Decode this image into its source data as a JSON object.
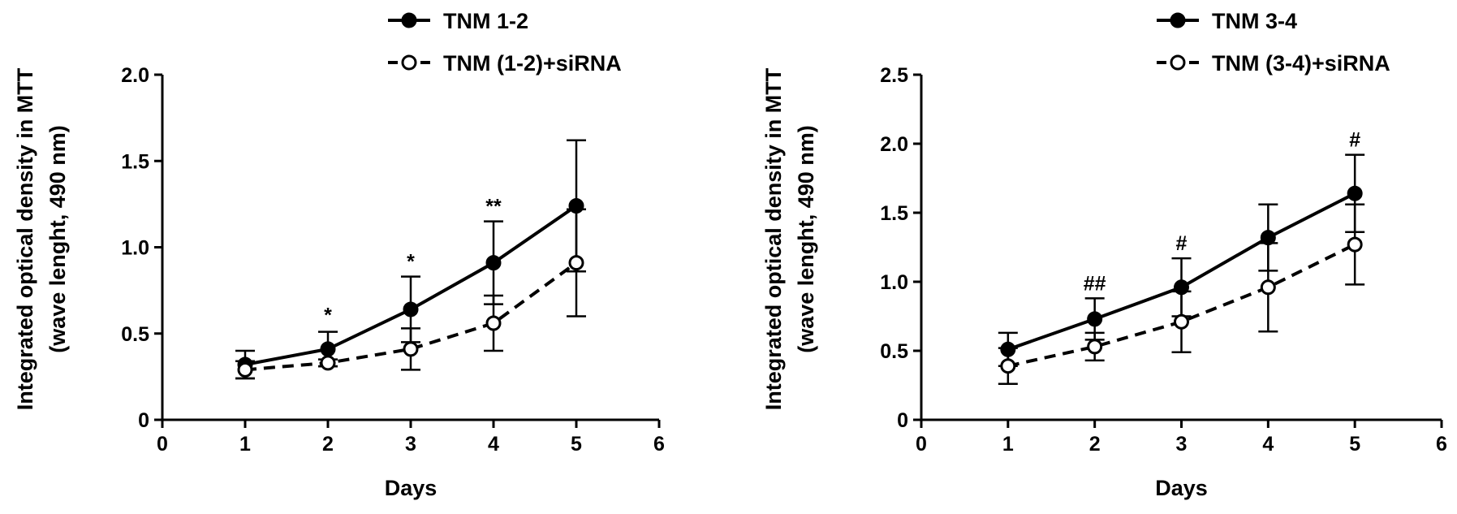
{
  "chart_data": [
    {
      "type": "line",
      "xlabel": "Days",
      "ylabel_lines": [
        "Integrated optical density in MTT",
        "(wave lenght, 490 nm)"
      ],
      "xlim": [
        0,
        6
      ],
      "ylim": [
        0,
        2.0
      ],
      "x_ticks": [
        0,
        1,
        2,
        3,
        4,
        5,
        6
      ],
      "y_ticks": [
        0,
        0.5,
        1.0,
        1.5,
        2.0
      ],
      "y_tick_labels": [
        "0",
        "0.5",
        "1.0",
        "1.5",
        "2.0"
      ],
      "legend_position": "top-right",
      "series": [
        {
          "name": "TNM 1-2",
          "marker": "filled",
          "line_style": "solid",
          "x": [
            1,
            2,
            3,
            4,
            5
          ],
          "y": [
            0.32,
            0.41,
            0.64,
            0.91,
            1.24
          ],
          "err_low": [
            0.08,
            0.1,
            0.19,
            0.24,
            0.38
          ],
          "err_high": [
            0.08,
            0.1,
            0.19,
            0.24,
            0.38
          ]
        },
        {
          "name": "TNM (1-2)+siRNA",
          "marker": "open",
          "line_style": "dashed",
          "x": [
            1,
            2,
            3,
            4,
            5
          ],
          "y": [
            0.29,
            0.33,
            0.41,
            0.56,
            0.91
          ],
          "err_low": [
            0.05,
            0.02,
            0.12,
            0.16,
            0.31
          ],
          "err_high": [
            0.05,
            0.02,
            0.12,
            0.16,
            0.31
          ]
        }
      ],
      "annotations": [
        {
          "x": 2,
          "y": 0.52,
          "text": "*"
        },
        {
          "x": 3,
          "y": 0.83,
          "text": "*"
        },
        {
          "x": 4,
          "y": 1.15,
          "text": "**"
        }
      ]
    },
    {
      "type": "line",
      "xlabel": "Days",
      "ylabel_lines": [
        "Integrated optical density in MTT",
        "(wave lenght, 490 nm)"
      ],
      "xlim": [
        0,
        6
      ],
      "ylim": [
        0,
        2.5
      ],
      "x_ticks": [
        0,
        1,
        2,
        3,
        4,
        5,
        6
      ],
      "y_ticks": [
        0,
        0.5,
        1.0,
        1.5,
        2.0,
        2.5
      ],
      "y_tick_labels": [
        "0",
        "0.5",
        "1.0",
        "1.5",
        "2.0",
        "2.5"
      ],
      "legend_position": "top-right",
      "series": [
        {
          "name": "TNM 3-4",
          "marker": "filled",
          "line_style": "solid",
          "x": [
            1,
            2,
            3,
            4,
            5
          ],
          "y": [
            0.51,
            0.73,
            0.96,
            1.32,
            1.64
          ],
          "err_low": [
            0.12,
            0.15,
            0.21,
            0.24,
            0.28
          ],
          "err_high": [
            0.12,
            0.15,
            0.21,
            0.24,
            0.28
          ]
        },
        {
          "name": "TNM (3-4)+siRNA",
          "marker": "open",
          "line_style": "dashed",
          "x": [
            1,
            2,
            3,
            4,
            5
          ],
          "y": [
            0.39,
            0.53,
            0.71,
            0.96,
            1.27
          ],
          "err_low": [
            0.13,
            0.1,
            0.22,
            0.32,
            0.29
          ],
          "err_high": [
            0.13,
            0.1,
            0.22,
            0.32,
            0.29
          ]
        }
      ],
      "annotations": [
        {
          "x": 2,
          "y": 0.88,
          "text": "##"
        },
        {
          "x": 3,
          "y": 1.17,
          "text": "#"
        },
        {
          "x": 5,
          "y": 1.92,
          "text": "#"
        }
      ]
    }
  ]
}
